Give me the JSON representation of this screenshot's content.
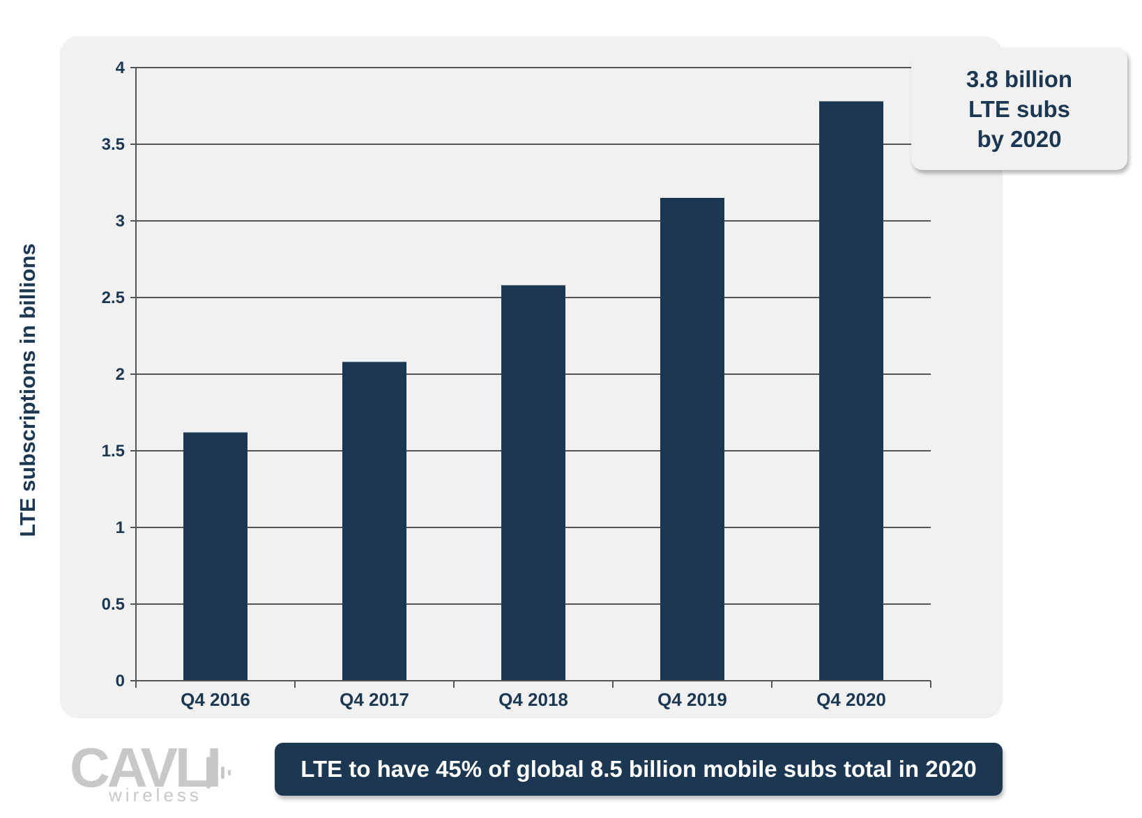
{
  "chart_data": {
    "type": "bar",
    "categories": [
      "Q4 2016",
      "Q4 2017",
      "Q4 2018",
      "Q4 2019",
      "Q4 2020"
    ],
    "values": [
      1.62,
      2.08,
      2.58,
      3.15,
      3.78
    ],
    "ylabel": "LTE subscriptions in billions",
    "xlabel": "",
    "ylim": [
      0,
      4
    ],
    "yticks": [
      0,
      0.5,
      1,
      1.5,
      2,
      2.5,
      3,
      3.5,
      4
    ],
    "ytick_labels": [
      "0",
      "0.5",
      "1",
      "1.5",
      "2",
      "2.5",
      "3",
      "3.5",
      "4"
    ],
    "grid": true,
    "colors": {
      "bar": "#1c3752",
      "grid": "#555555",
      "panel": "#f1f1f1"
    }
  },
  "callout": {
    "line1": "3.8 billion",
    "line2": "LTE subs",
    "line3": "by 2020"
  },
  "banner": {
    "text": "LTE to have 45% of global 8.5 billion mobile subs total in 2020"
  },
  "logo": {
    "name": "CAVLI",
    "sub": "wireless",
    "icon": "sound-wave-icon"
  }
}
